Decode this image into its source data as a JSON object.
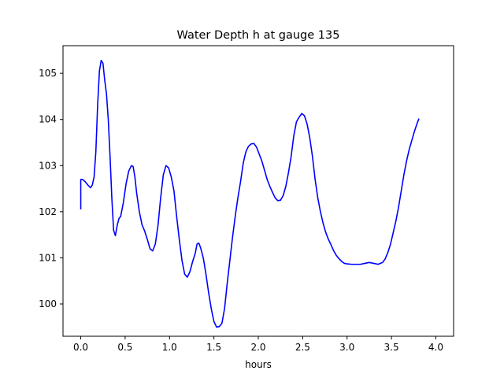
{
  "chart_data": {
    "type": "line",
    "title": "Water Depth h at gauge 135",
    "xlabel": "hours",
    "ylabel": "",
    "xlim": [
      -0.2,
      4.2
    ],
    "ylim": [
      99.3,
      105.6
    ],
    "xticks": [
      0.0,
      0.5,
      1.0,
      1.5,
      2.0,
      2.5,
      3.0,
      3.5,
      4.0
    ],
    "xtick_labels": [
      "0.0",
      "0.5",
      "1.0",
      "1.5",
      "2.0",
      "2.5",
      "3.0",
      "3.5",
      "4.0"
    ],
    "yticks": [
      100,
      101,
      102,
      103,
      104,
      105
    ],
    "ytick_labels": [
      "100",
      "101",
      "102",
      "103",
      "104",
      "105"
    ],
    "grid": false,
    "legend": "none",
    "series": [
      {
        "color": "#0000ff",
        "points": [
          [
            0.0,
            102.05
          ],
          [
            0.0,
            102.7
          ],
          [
            0.02,
            102.7
          ],
          [
            0.05,
            102.65
          ],
          [
            0.08,
            102.58
          ],
          [
            0.11,
            102.52
          ],
          [
            0.13,
            102.58
          ],
          [
            0.15,
            102.75
          ],
          [
            0.17,
            103.3
          ],
          [
            0.19,
            104.3
          ],
          [
            0.21,
            105.05
          ],
          [
            0.23,
            105.28
          ],
          [
            0.25,
            105.22
          ],
          [
            0.27,
            104.85
          ],
          [
            0.29,
            104.55
          ],
          [
            0.31,
            104.0
          ],
          [
            0.33,
            103.2
          ],
          [
            0.35,
            102.3
          ],
          [
            0.37,
            101.6
          ],
          [
            0.39,
            101.48
          ],
          [
            0.41,
            101.7
          ],
          [
            0.43,
            101.85
          ],
          [
            0.45,
            101.9
          ],
          [
            0.48,
            102.2
          ],
          [
            0.51,
            102.6
          ],
          [
            0.54,
            102.88
          ],
          [
            0.57,
            103.0
          ],
          [
            0.59,
            102.98
          ],
          [
            0.61,
            102.75
          ],
          [
            0.63,
            102.4
          ],
          [
            0.66,
            102.0
          ],
          [
            0.69,
            101.72
          ],
          [
            0.72,
            101.58
          ],
          [
            0.75,
            101.4
          ],
          [
            0.78,
            101.2
          ],
          [
            0.81,
            101.15
          ],
          [
            0.84,
            101.3
          ],
          [
            0.87,
            101.7
          ],
          [
            0.9,
            102.3
          ],
          [
            0.93,
            102.8
          ],
          [
            0.96,
            103.0
          ],
          [
            0.99,
            102.95
          ],
          [
            1.02,
            102.75
          ],
          [
            1.05,
            102.45
          ],
          [
            1.08,
            101.9
          ],
          [
            1.11,
            101.4
          ],
          [
            1.14,
            100.95
          ],
          [
            1.17,
            100.65
          ],
          [
            1.2,
            100.58
          ],
          [
            1.23,
            100.7
          ],
          [
            1.26,
            100.92
          ],
          [
            1.29,
            101.1
          ],
          [
            1.31,
            101.3
          ],
          [
            1.33,
            101.32
          ],
          [
            1.35,
            101.22
          ],
          [
            1.38,
            101.0
          ],
          [
            1.41,
            100.65
          ],
          [
            1.44,
            100.25
          ],
          [
            1.47,
            99.9
          ],
          [
            1.5,
            99.62
          ],
          [
            1.53,
            99.5
          ],
          [
            1.56,
            99.51
          ],
          [
            1.59,
            99.58
          ],
          [
            1.62,
            99.9
          ],
          [
            1.65,
            100.45
          ],
          [
            1.68,
            100.95
          ],
          [
            1.71,
            101.45
          ],
          [
            1.74,
            101.9
          ],
          [
            1.77,
            102.3
          ],
          [
            1.8,
            102.65
          ],
          [
            1.83,
            103.05
          ],
          [
            1.86,
            103.3
          ],
          [
            1.89,
            103.42
          ],
          [
            1.92,
            103.47
          ],
          [
            1.95,
            103.48
          ],
          [
            1.98,
            103.4
          ],
          [
            2.01,
            103.25
          ],
          [
            2.04,
            103.1
          ],
          [
            2.07,
            102.9
          ],
          [
            2.1,
            102.7
          ],
          [
            2.13,
            102.55
          ],
          [
            2.16,
            102.42
          ],
          [
            2.19,
            102.3
          ],
          [
            2.22,
            102.24
          ],
          [
            2.25,
            102.25
          ],
          [
            2.28,
            102.35
          ],
          [
            2.31,
            102.55
          ],
          [
            2.34,
            102.85
          ],
          [
            2.37,
            103.2
          ],
          [
            2.4,
            103.65
          ],
          [
            2.43,
            103.95
          ],
          [
            2.46,
            104.05
          ],
          [
            2.49,
            104.13
          ],
          [
            2.52,
            104.08
          ],
          [
            2.55,
            103.9
          ],
          [
            2.58,
            103.6
          ],
          [
            2.61,
            103.2
          ],
          [
            2.64,
            102.7
          ],
          [
            2.67,
            102.3
          ],
          [
            2.7,
            102.0
          ],
          [
            2.73,
            101.75
          ],
          [
            2.76,
            101.55
          ],
          [
            2.79,
            101.4
          ],
          [
            2.82,
            101.28
          ],
          [
            2.85,
            101.15
          ],
          [
            2.88,
            101.05
          ],
          [
            2.91,
            100.98
          ],
          [
            2.94,
            100.92
          ],
          [
            2.97,
            100.88
          ],
          [
            3.0,
            100.87
          ],
          [
            3.05,
            100.86
          ],
          [
            3.1,
            100.86
          ],
          [
            3.15,
            100.86
          ],
          [
            3.2,
            100.88
          ],
          [
            3.25,
            100.9
          ],
          [
            3.3,
            100.88
          ],
          [
            3.35,
            100.86
          ],
          [
            3.4,
            100.9
          ],
          [
            3.43,
            100.98
          ],
          [
            3.46,
            101.12
          ],
          [
            3.49,
            101.3
          ],
          [
            3.52,
            101.55
          ],
          [
            3.55,
            101.8
          ],
          [
            3.58,
            102.1
          ],
          [
            3.61,
            102.45
          ],
          [
            3.64,
            102.8
          ],
          [
            3.67,
            103.1
          ],
          [
            3.7,
            103.35
          ],
          [
            3.73,
            103.55
          ],
          [
            3.76,
            103.75
          ],
          [
            3.79,
            103.92
          ],
          [
            3.81,
            104.02
          ]
        ]
      }
    ]
  }
}
